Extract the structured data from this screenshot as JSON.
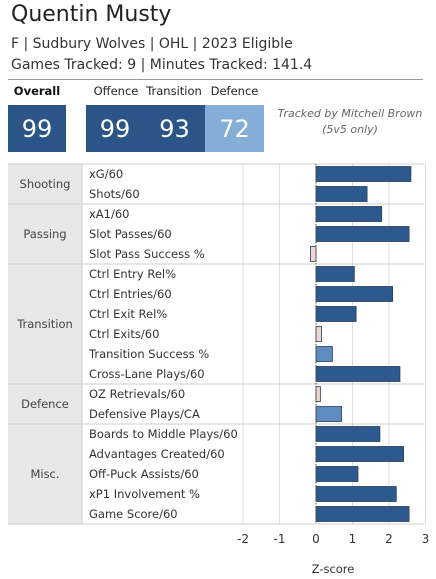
{
  "header": {
    "player_name": "Quentin Musty",
    "subtitle": "F | Sudbury Wolves | OHL | 2023 Eligible",
    "tracked": "Games Tracked: 9 | Minutes Tracked: 141.4",
    "attribution": "Tracked by Mitchell Brown (5v5 only)"
  },
  "cards": [
    {
      "label": "Overall",
      "value": "99",
      "color": "#2b5586",
      "label_color": "#111111",
      "label_weight": "bold"
    },
    {
      "label": "Offence",
      "value": "99",
      "color": "#2b5586",
      "label_color": "#222222",
      "label_weight": "normal"
    },
    {
      "label": "Transition",
      "value": "93",
      "color": "#2b5586",
      "label_color": "#222222",
      "label_weight": "normal"
    },
    {
      "label": "Defence",
      "value": "72",
      "color": "#84aed8",
      "label_color": "#222222",
      "label_weight": "normal"
    }
  ],
  "colors": {
    "bar_positive": "#2d5a8e",
    "bar_positive_light": "#5e8cbf",
    "bar_negative": "#ecd5d3",
    "group_band": "#e8e8e8",
    "zero_line": "#444444",
    "grid": "#dddddd"
  },
  "chart_data": {
    "type": "bar",
    "orientation": "horizontal",
    "xlabel": "Z-score",
    "xlim": [
      -2.5,
      3.1
    ],
    "xticks": [
      -2,
      -1,
      0,
      1,
      2,
      3
    ],
    "groups": [
      {
        "name": "Shooting",
        "rows": [
          {
            "label": "xG/60",
            "value": 2.6
          },
          {
            "label": "Shots/60",
            "value": 1.4
          }
        ]
      },
      {
        "name": "Passing",
        "rows": [
          {
            "label": "xA1/60",
            "value": 1.8
          },
          {
            "label": "Slot Passes/60",
            "value": 2.55
          },
          {
            "label": "Slot Pass Success %",
            "value": -0.15
          }
        ]
      },
      {
        "name": "Transition",
        "rows": [
          {
            "label": "Ctrl Entry Rel%",
            "value": 1.05
          },
          {
            "label": "Ctrl Entries/60",
            "value": 2.1
          },
          {
            "label": "Ctrl Exit Rel%",
            "value": 1.1
          },
          {
            "label": "Ctrl Exits/60",
            "value": 0.15
          },
          {
            "label": "Transition Success %",
            "value": 0.45
          },
          {
            "label": "Cross-Lane Plays/60",
            "value": 2.3
          }
        ]
      },
      {
        "name": "Defence",
        "rows": [
          {
            "label": "OZ Retrievals/60",
            "value": 0.12
          },
          {
            "label": "Defensive Plays/CA",
            "value": 0.7
          }
        ]
      },
      {
        "name": "Misc.",
        "rows": [
          {
            "label": "Boards to Middle Plays/60",
            "value": 1.75
          },
          {
            "label": "Advantages Created/60",
            "value": 2.4
          },
          {
            "label": "Off-Puck Assists/60",
            "value": 1.15
          },
          {
            "label": "xP1 Involvement %",
            "value": 2.2
          },
          {
            "label": "Game Score/60",
            "value": 2.55
          }
        ]
      }
    ]
  }
}
